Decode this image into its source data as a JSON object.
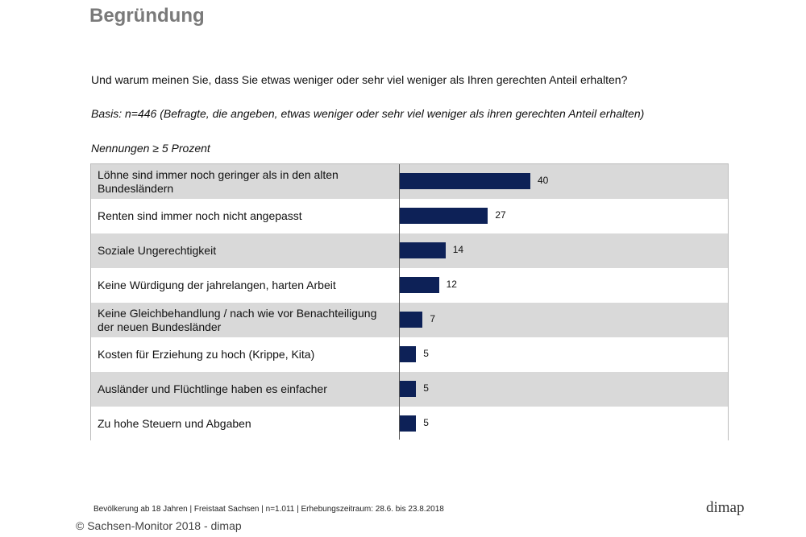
{
  "title": "Begründung",
  "question": "Und warum meinen Sie, dass Sie etwas weniger oder sehr viel weniger als Ihren gerechten Anteil erhalten?",
  "basis": "Basis: n=446 (Befragte, die angeben, etwas weniger oder sehr viel weniger als ihren gerechten Anteil erhalten)",
  "note": "Nennungen ≥ 5 Prozent",
  "chart_data": {
    "type": "bar",
    "orientation": "horizontal",
    "categories": [
      "Löhne sind immer noch geringer als in den alten Bundesländern",
      "Renten sind immer noch nicht angepasst",
      "Soziale Ungerechtigkeit",
      "Keine Würdigung der jahrelangen, harten Arbeit",
      "Keine Gleichbehandlung / nach wie vor Benachteiligung der neuen Bundesländer",
      "Kosten für Erziehung zu hoch (Krippe, Kita)",
      "Ausländer und Flüchtlinge haben es einfacher",
      "Zu hohe Steuern und Abgaben"
    ],
    "values": [
      40,
      27,
      14,
      12,
      7,
      5,
      5,
      5
    ],
    "bar_color": "#0d2157",
    "row_shading": [
      "#d9d9d9",
      "#ffffff"
    ],
    "grid": false
  },
  "footer": "Bevölkerung ab 18 Jahren | Freistaat Sachsen | n=1.011 | Erhebungszeitraum: 28.6. bis 23.8.2018",
  "logo": "dimap",
  "copyright": "© Sachsen-Monitor 2018 - dimap"
}
